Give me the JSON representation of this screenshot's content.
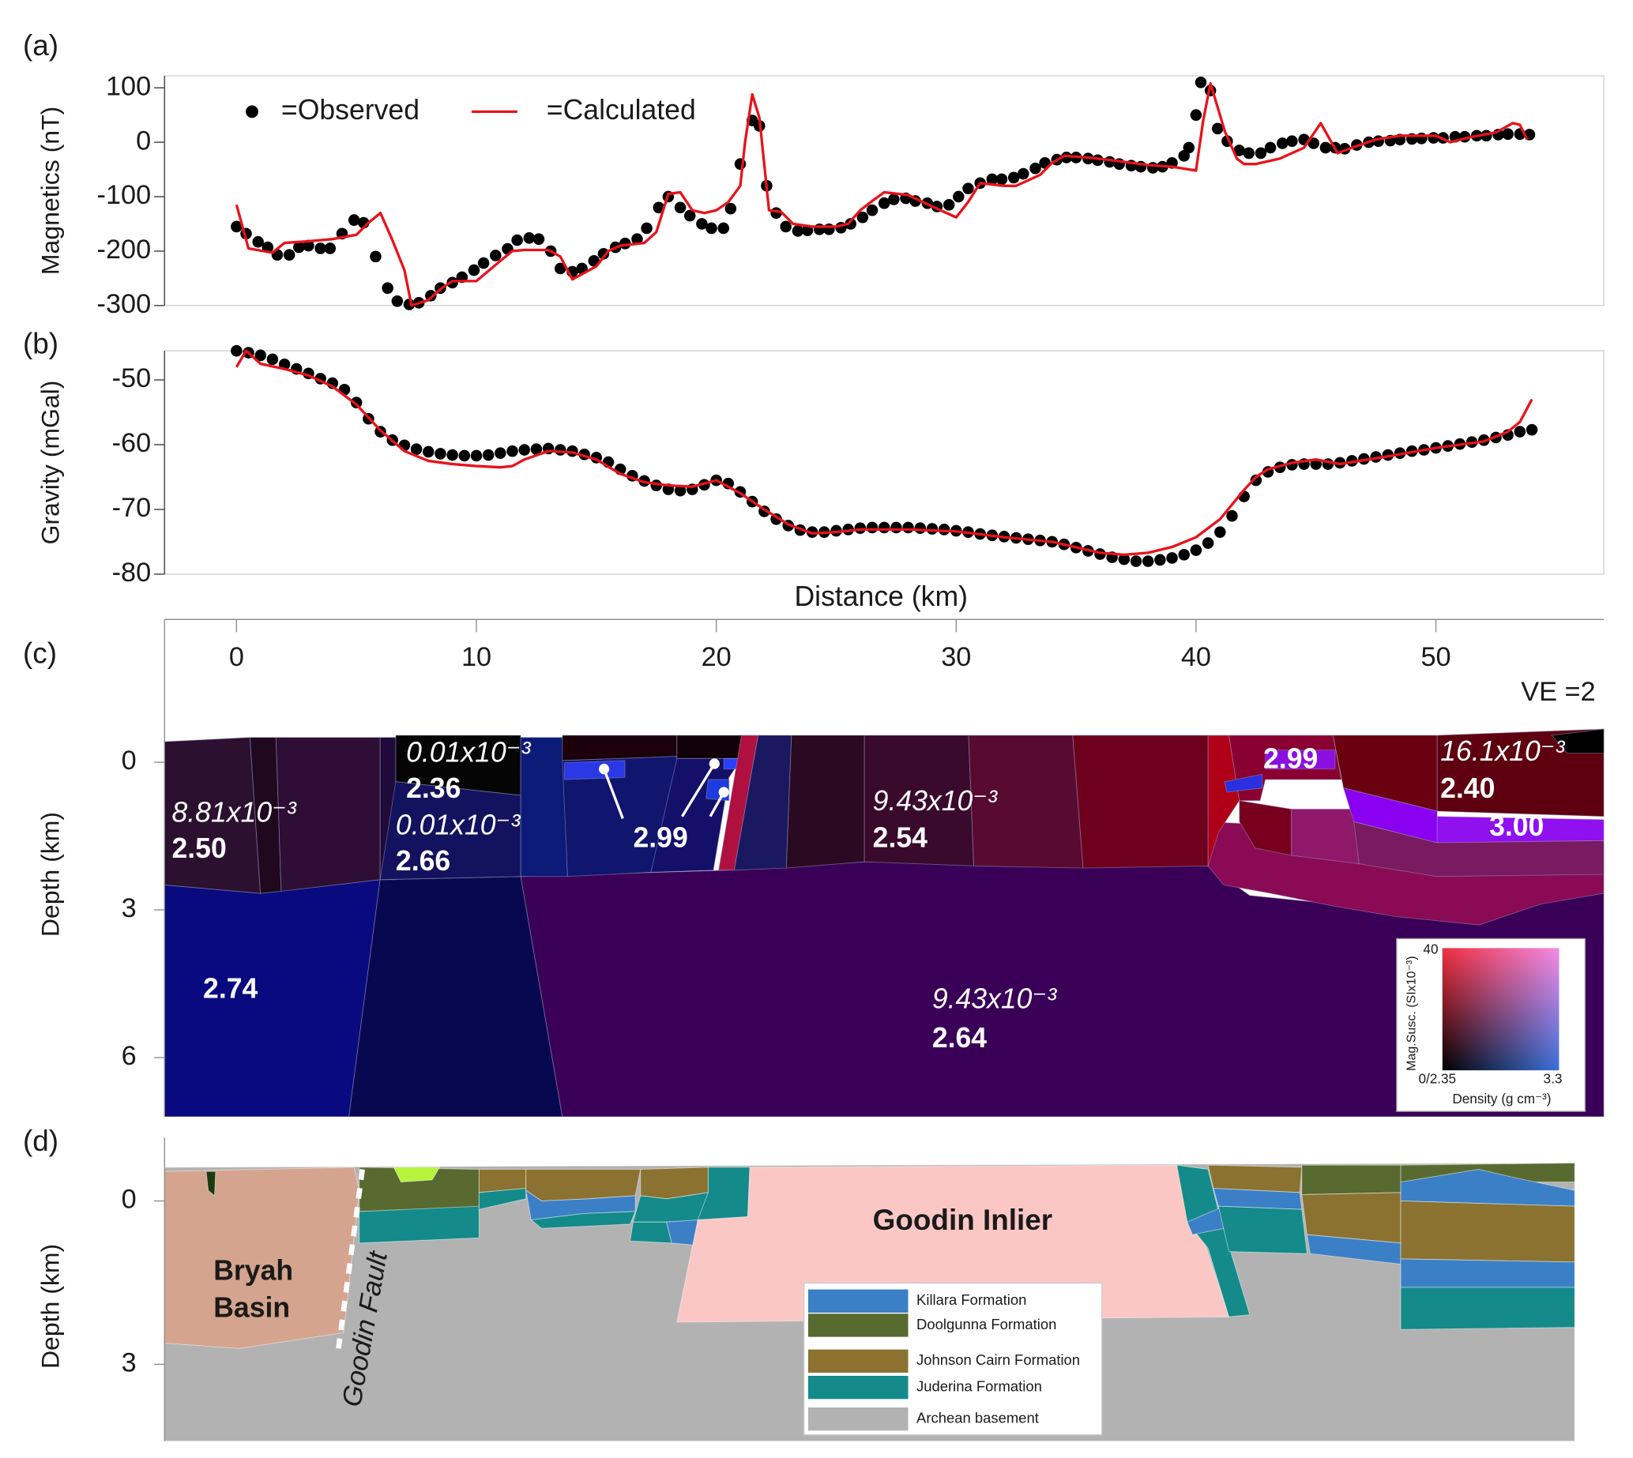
{
  "chart_data": [
    {
      "type": "line",
      "label": "(a)",
      "y_label": "Magnetics (nT)",
      "xlim": [
        -3,
        57
      ],
      "ylim": [
        -300,
        122
      ],
      "yticks": [
        -300,
        -200,
        -100,
        0,
        100
      ],
      "series": [
        {
          "name": "=Observed",
          "color": "#000000",
          "mode": "markers",
          "x": [
            0,
            0.4,
            0.9,
            1.3,
            1.7,
            2.2,
            2.6,
            3.0,
            3.5,
            3.9,
            4.4,
            4.9,
            5.3,
            5.8,
            6.3,
            6.7,
            7.2,
            7.6,
            8.1,
            8.5,
            9.0,
            9.4,
            9.9,
            10.3,
            10.8,
            11.3,
            11.7,
            12.2,
            12.6,
            13.1,
            13.5,
            14.0,
            14.4,
            14.9,
            15.3,
            15.8,
            16.2,
            16.7,
            17.1,
            17.6,
            18.0,
            18.5,
            18.9,
            19.4,
            19.8,
            20.3,
            20.6,
            21.0,
            21.5,
            21.8,
            22.1,
            22.5,
            22.9,
            23.4,
            23.8,
            24.3,
            24.7,
            25.2,
            25.6,
            26.1,
            26.5,
            27.0,
            27.4,
            27.9,
            28.3,
            28.8,
            29.2,
            29.7,
            30.1,
            30.5,
            31.0,
            31.5,
            31.9,
            32.4,
            32.8,
            33.3,
            33.7,
            34.2,
            34.6,
            35.0,
            35.5,
            35.9,
            36.4,
            36.8,
            37.3,
            37.7,
            38.2,
            38.6,
            39.0,
            39.5,
            39.7,
            40.0,
            40.2,
            40.6,
            40.9,
            41.3,
            41.8,
            42.2,
            42.7,
            43.1,
            43.6,
            44.0,
            44.5,
            44.9,
            45.4,
            45.8,
            46.2,
            46.7,
            47.2,
            47.6,
            48.1,
            48.5,
            49.0,
            49.4,
            49.9,
            50.3,
            50.8,
            51.2,
            51.7,
            52.1,
            52.6,
            53.0,
            53.5,
            53.9
          ],
          "values": [
            -155,
            -168,
            -183,
            -193,
            -207,
            -207,
            -193,
            -190,
            -195,
            -195,
            -168,
            -143,
            -148,
            -210,
            -268,
            -292,
            -298,
            -295,
            -282,
            -268,
            -258,
            -248,
            -235,
            -222,
            -208,
            -196,
            -180,
            -176,
            -178,
            -200,
            -232,
            -238,
            -232,
            -218,
            -205,
            -193,
            -186,
            -178,
            -158,
            -120,
            -100,
            -120,
            -135,
            -150,
            -158,
            -158,
            -122,
            -40,
            40,
            30,
            -80,
            -130,
            -155,
            -163,
            -162,
            -160,
            -160,
            -157,
            -150,
            -138,
            -125,
            -112,
            -105,
            -103,
            -108,
            -112,
            -118,
            -115,
            -100,
            -85,
            -75,
            -68,
            -68,
            -65,
            -58,
            -48,
            -38,
            -32,
            -28,
            -28,
            -30,
            -33,
            -36,
            -40,
            -43,
            -45,
            -47,
            -45,
            -38,
            -25,
            -10,
            50,
            110,
            95,
            25,
            2,
            -15,
            -20,
            -20,
            -10,
            -2,
            2,
            5,
            -2,
            -10,
            -10,
            -12,
            -5,
            0,
            2,
            3,
            5,
            6,
            7,
            8,
            8,
            10,
            10,
            12,
            12,
            14,
            15,
            15,
            14
          ]
        },
        {
          "name": "=Calculated",
          "color": "#e8131b",
          "mode": "line",
          "x": [
            0,
            0.5,
            1.5,
            2,
            3,
            4,
            5,
            5.5,
            6,
            6.5,
            7,
            7.3,
            8,
            8.5,
            9,
            10,
            11,
            11.5,
            12,
            13,
            13.5,
            14,
            15,
            15.5,
            16,
            17,
            17.5,
            18,
            18.5,
            19,
            19.5,
            20,
            20.5,
            21,
            21.2,
            21.5,
            21.8,
            22.2,
            22.7,
            23.2,
            24,
            25,
            25.5,
            26,
            26.5,
            27,
            28,
            29,
            30,
            30.5,
            31,
            32,
            32.5,
            33.5,
            34,
            34.5,
            35.5,
            36.5,
            38,
            39,
            40,
            40.3,
            40.6,
            41.2,
            41.7,
            42,
            42.5,
            43.5,
            44.5,
            45.2,
            45.9,
            46.5,
            47.5,
            48.5,
            50,
            50.6,
            51.5,
            52.5,
            53.2,
            53.5,
            53.8
          ],
          "values": [
            -115,
            -195,
            -203,
            -185,
            -182,
            -178,
            -170,
            -148,
            -130,
            -180,
            -235,
            -300,
            -290,
            -270,
            -255,
            -255,
            -218,
            -200,
            -198,
            -198,
            -210,
            -252,
            -228,
            -200,
            -190,
            -185,
            -165,
            -95,
            -92,
            -125,
            -130,
            -125,
            -110,
            -80,
            0,
            88,
            45,
            -125,
            -128,
            -150,
            -155,
            -155,
            -150,
            -125,
            -108,
            -92,
            -97,
            -118,
            -138,
            -110,
            -75,
            -80,
            -80,
            -60,
            -38,
            -25,
            -28,
            -33,
            -42,
            -45,
            -52,
            40,
            108,
            20,
            -30,
            -40,
            -40,
            -30,
            -10,
            35,
            -20,
            -10,
            5,
            12,
            12,
            0,
            10,
            18,
            35,
            32,
            5
          ]
        }
      ]
    },
    {
      "type": "line",
      "label": "(b)",
      "y_label": "Gravity (mGal)",
      "xlim": [
        -3,
        57
      ],
      "ylim": [
        -80,
        -45.5
      ],
      "yticks": [
        -80,
        -70,
        -60,
        -50
      ],
      "series": [
        {
          "color": "#000000",
          "mode": "markers",
          "x": [
            0,
            0.5,
            1,
            1.5,
            2,
            2.5,
            3,
            3.5,
            4,
            4.5,
            5,
            5.5,
            6,
            6.5,
            7,
            7.5,
            8,
            8.5,
            9,
            9.5,
            10,
            10.5,
            11,
            11.5,
            12,
            12.5,
            13,
            13.5,
            14,
            14.5,
            15,
            15.5,
            16,
            16.5,
            17,
            17.5,
            18,
            18.5,
            19,
            19.5,
            20,
            20.5,
            21,
            21.5,
            22,
            22.5,
            23,
            23.5,
            24,
            24.5,
            25,
            25.5,
            26,
            26.5,
            27,
            27.5,
            28,
            28.5,
            29,
            29.5,
            30,
            30.5,
            31,
            31.5,
            32,
            32.5,
            33,
            33.5,
            34,
            34.5,
            35,
            35.5,
            36,
            36.5,
            37,
            37.5,
            38,
            38.5,
            39,
            39.5,
            40,
            40.5,
            41,
            41.5,
            42,
            42.5,
            43,
            43.5,
            44,
            44.5,
            45,
            45.5,
            46,
            46.5,
            47,
            47.5,
            48,
            48.5,
            49,
            49.5,
            50,
            50.5,
            51,
            51.5,
            52,
            52.5,
            53,
            53.5,
            54
          ],
          "values": [
            -45.5,
            -45.8,
            -46.2,
            -46.8,
            -47.6,
            -48.3,
            -49,
            -49.8,
            -50.5,
            -51.5,
            -53.5,
            -56,
            -58,
            -59.3,
            -60.1,
            -60.7,
            -61.1,
            -61.4,
            -61.6,
            -61.7,
            -61.7,
            -61.6,
            -61.3,
            -61,
            -60.8,
            -60.7,
            -60.6,
            -60.8,
            -61,
            -61.5,
            -62,
            -62.7,
            -63.8,
            -64.8,
            -65.6,
            -66.3,
            -66.9,
            -67.1,
            -66.9,
            -66.2,
            -65.5,
            -66,
            -67.3,
            -68.8,
            -70.3,
            -71.5,
            -72.5,
            -73.2,
            -73.5,
            -73.5,
            -73.3,
            -73.1,
            -72.9,
            -72.8,
            -72.8,
            -72.8,
            -72.8,
            -72.9,
            -73,
            -73.1,
            -73.3,
            -73.5,
            -73.8,
            -74,
            -74.2,
            -74.4,
            -74.6,
            -74.8,
            -75,
            -75.4,
            -75.9,
            -76.4,
            -76.9,
            -77.4,
            -77.7,
            -78,
            -78,
            -77.8,
            -77.5,
            -77,
            -76.3,
            -75.2,
            -73.5,
            -71,
            -68,
            -65.5,
            -64.2,
            -63.5,
            -63.1,
            -63,
            -63,
            -63,
            -62.8,
            -62.5,
            -62.2,
            -61.9,
            -61.6,
            -61.3,
            -61,
            -60.8,
            -60.5,
            -60.2,
            -59.9,
            -59.6,
            -59.3,
            -58.9,
            -58.5,
            -58,
            -57.7
          ]
        },
        {
          "color": "#e8131b",
          "mode": "line",
          "x": [
            0,
            0.4,
            1,
            2,
            3,
            4,
            5,
            6,
            7,
            8,
            9,
            10,
            11,
            11.5,
            12,
            13,
            14,
            15,
            16,
            17,
            18,
            19,
            20,
            21,
            22,
            23,
            24,
            25,
            26,
            28,
            30,
            32,
            34,
            36,
            37,
            38,
            39,
            40,
            41,
            42,
            42.5,
            43,
            44,
            45,
            46,
            48,
            50,
            52,
            53,
            53.5,
            54
          ],
          "values": [
            -48,
            -45.5,
            -47.5,
            -48.3,
            -49.3,
            -51,
            -53.8,
            -57.8,
            -61,
            -62.5,
            -63,
            -63.3,
            -63.5,
            -63.3,
            -62.3,
            -61,
            -61.2,
            -62.3,
            -64.5,
            -65.8,
            -66.3,
            -66.5,
            -65.5,
            -67.5,
            -70,
            -72.3,
            -73.7,
            -73.5,
            -73.1,
            -73.1,
            -73.4,
            -74.3,
            -75,
            -76.7,
            -77,
            -76.7,
            -75.8,
            -74.3,
            -71.5,
            -67,
            -65,
            -63.8,
            -62.8,
            -62.3,
            -63,
            -61.8,
            -60.5,
            -59.5,
            -58,
            -56.5,
            -53
          ]
        }
      ]
    }
  ],
  "sections": [
    {
      "label": "(c)",
      "x_label": "Distance (km)",
      "xlim": [
        -3,
        57
      ],
      "xticks": [
        0,
        10,
        20,
        30,
        40,
        50
      ],
      "y_label": "Depth (km)",
      "ylim": [
        -2.9,
        7.2
      ],
      "yticks": [
        0,
        3,
        6
      ],
      "note": "VE =2",
      "annotations": [
        "8.81x10⁻³",
        "2.50",
        "0.01x10⁻³",
        "2.36",
        "0.01x10⁻³",
        "2.66",
        "2.99",
        "9.43x10⁻³",
        "2.54",
        "2.99",
        "16.1x10⁻³",
        "2.40",
        "3.00",
        "2.74",
        "9.43x10⁻³",
        "2.64"
      ],
      "color_key": {
        "y_label": "Mag.Susc. (SIx10⁻³)",
        "top": "40",
        "corner": "0/2.35",
        "right": "3.3",
        "x_label": "Density (g cm⁻³)"
      }
    },
    {
      "label": "(d)",
      "y_label": "Depth (km)",
      "ylim": [
        -1.16,
        4.41
      ],
      "yticks": [
        0,
        3
      ],
      "annotations": [
        "Bryah",
        "Basin",
        "Goodin Fault",
        "Goodin Inlier"
      ],
      "legend": [
        {
          "name": "Killara Formation",
          "color": "#3b7fc6"
        },
        {
          "name": "Doolgunna Formation",
          "color": "#586a30"
        },
        {
          "name": "Johnson Cairn Formation",
          "color": "#8b7230"
        },
        {
          "name": "Juderina Formation",
          "color": "#148a8a"
        },
        {
          "name": "Archean basement",
          "color": "#b2b2b2"
        }
      ]
    }
  ]
}
